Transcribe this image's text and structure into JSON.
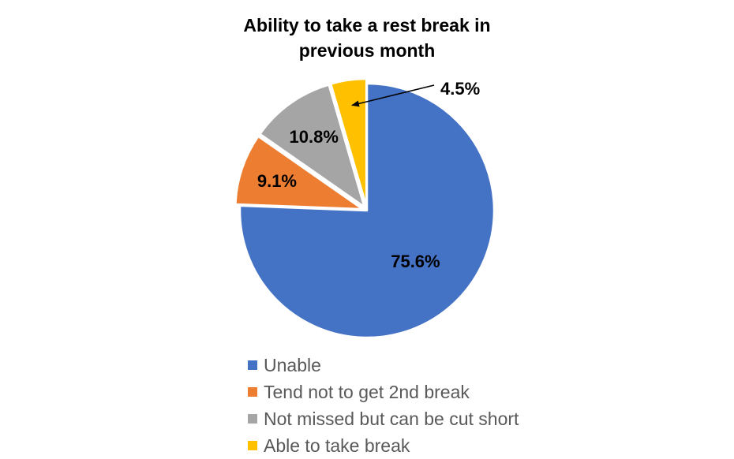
{
  "chart_data": {
    "type": "pie",
    "title_lines": [
      "Ability to take a rest break in",
      "previous month"
    ],
    "categories": [
      "Unable",
      "Tend not to get 2nd break",
      "Not missed but can be cut short",
      "Able to take break"
    ],
    "values": [
      75.6,
      9.1,
      10.8,
      4.5
    ],
    "data_labels": [
      "75.6%",
      "9.1%",
      "10.8%",
      "4.5%"
    ],
    "colors": [
      "#4472C4",
      "#ED7D31",
      "#A5A5A5",
      "#FFC000"
    ],
    "start_angle_deg": 0,
    "direction": "clockwise",
    "legend_position": "bottom",
    "exploded": true
  }
}
